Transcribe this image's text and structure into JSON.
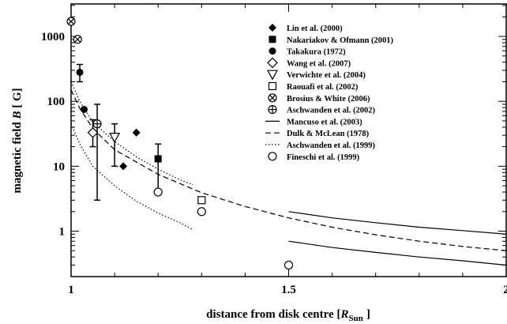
{
  "chart_data": {
    "type": "scatter",
    "xlabel_prefix": "distance from disk centre  [",
    "xlabel_var": "R",
    "xlabel_sub": "Sun",
    "xlabel_suffix": "]",
    "ylabel_prefix": "magnetic field ",
    "ylabel_var": "B",
    "ylabel_suffix": " [ G]",
    "xlim": [
      1.0,
      2.0
    ],
    "ylim_log10": [
      -0.7,
      3.5
    ],
    "y_scale": "log",
    "legend_position": "top-right",
    "x_ticks": [
      {
        "v": 1,
        "label": "1"
      },
      {
        "v": 1.5,
        "label": "1.5"
      },
      {
        "v": 2,
        "label": "2"
      }
    ],
    "y_ticks": [
      {
        "v": 1,
        "label": "1"
      },
      {
        "v": 10,
        "label": "10"
      },
      {
        "v": 100,
        "label": "100"
      },
      {
        "v": 1000,
        "label": "1000"
      }
    ],
    "series": [
      {
        "name": "Lin et al. (2000)",
        "marker": "diamond-filled",
        "points": [
          {
            "x": 1.12,
            "y": 10
          },
          {
            "x": 1.15,
            "y": 33
          }
        ]
      },
      {
        "name": "Nakariakov & Ofmann (2001)",
        "marker": "square-filled",
        "points": [
          {
            "x": 1.2,
            "y": 13,
            "err": [
              4,
              22
            ]
          }
        ]
      },
      {
        "name": "Takakura (1972)",
        "marker": "circle-filled",
        "points": [
          {
            "x": 1.02,
            "y": 280,
            "err": [
              200,
              370
            ]
          },
          {
            "x": 1.03,
            "y": 75
          }
        ]
      },
      {
        "name": "Wang et al. (2007)",
        "marker": "diamond-open",
        "points": [
          {
            "x": 1.05,
            "y": 33,
            "err": [
              20,
              52
            ]
          }
        ]
      },
      {
        "name": "Verwichte et al. (2004)",
        "marker": "triangle-down-open",
        "points": [
          {
            "x": 1.1,
            "y": 28,
            "err": [
              10,
              45
            ]
          }
        ]
      },
      {
        "name": "Raouafi et al. (2002)",
        "marker": "square-open",
        "points": [
          {
            "x": 1.3,
            "y": 3
          }
        ]
      },
      {
        "name": "Brosius & White (2006)",
        "marker": "circle-x",
        "points": [
          {
            "x": 1.0,
            "y": 1700
          },
          {
            "x": 1.015,
            "y": 900
          }
        ]
      },
      {
        "name": "Aschwanden et al. (2002)",
        "marker": "circle-plus",
        "points": [
          {
            "x": 1.06,
            "y": 45,
            "err": [
              3,
              90
            ]
          }
        ]
      },
      {
        "name": "Mancuso et al. (2003)",
        "marker": "line-solid",
        "lines": [
          [
            {
              "x": 1.5,
              "y": 2.0
            },
            {
              "x": 1.6,
              "y": 1.6
            },
            {
              "x": 1.7,
              "y": 1.35
            },
            {
              "x": 1.8,
              "y": 1.15
            },
            {
              "x": 1.9,
              "y": 1.02
            },
            {
              "x": 2.0,
              "y": 0.9
            }
          ],
          [
            {
              "x": 1.5,
              "y": 0.7
            },
            {
              "x": 1.6,
              "y": 0.56
            },
            {
              "x": 1.7,
              "y": 0.47
            },
            {
              "x": 1.8,
              "y": 0.4
            },
            {
              "x": 1.9,
              "y": 0.35
            },
            {
              "x": 2.0,
              "y": 0.3
            }
          ]
        ]
      },
      {
        "name": "Dulk & McLean (1978)",
        "marker": "line-dashed",
        "lines": [
          [
            {
              "x": 1.0,
              "y": 150
            },
            {
              "x": 1.02,
              "y": 78
            },
            {
              "x": 1.05,
              "y": 38
            },
            {
              "x": 1.1,
              "y": 18
            },
            {
              "x": 1.2,
              "y": 7.5
            },
            {
              "x": 1.3,
              "y": 3.9
            },
            {
              "x": 1.4,
              "y": 2.4
            },
            {
              "x": 1.5,
              "y": 1.6
            },
            {
              "x": 1.6,
              "y": 1.15
            },
            {
              "x": 1.7,
              "y": 0.88
            },
            {
              "x": 1.8,
              "y": 0.7
            },
            {
              "x": 1.9,
              "y": 0.58
            },
            {
              "x": 2.0,
              "y": 0.5
            }
          ]
        ]
      },
      {
        "name": "Aschwanden et al. (1999)",
        "marker": "line-dotted",
        "lines": [
          [
            {
              "x": 1.0,
              "y": 200
            },
            {
              "x": 1.02,
              "y": 100
            },
            {
              "x": 1.05,
              "y": 48
            },
            {
              "x": 1.1,
              "y": 24
            },
            {
              "x": 1.15,
              "y": 14
            },
            {
              "x": 1.2,
              "y": 9
            },
            {
              "x": 1.25,
              "y": 6.2
            },
            {
              "x": 1.28,
              "y": 5.2
            }
          ],
          [
            {
              "x": 1.0,
              "y": 45
            },
            {
              "x": 1.02,
              "y": 22
            },
            {
              "x": 1.05,
              "y": 10
            },
            {
              "x": 1.1,
              "y": 5
            },
            {
              "x": 1.15,
              "y": 2.9
            },
            {
              "x": 1.2,
              "y": 1.9
            },
            {
              "x": 1.25,
              "y": 1.35
            },
            {
              "x": 1.28,
              "y": 1.05
            }
          ]
        ]
      },
      {
        "name": "Fineschi et al. (1999)",
        "marker": "circle-open",
        "points": [
          {
            "x": 1.2,
            "y": 4
          },
          {
            "x": 1.3,
            "y": 2
          },
          {
            "x": 1.5,
            "y": 0.3
          }
        ]
      }
    ]
  }
}
